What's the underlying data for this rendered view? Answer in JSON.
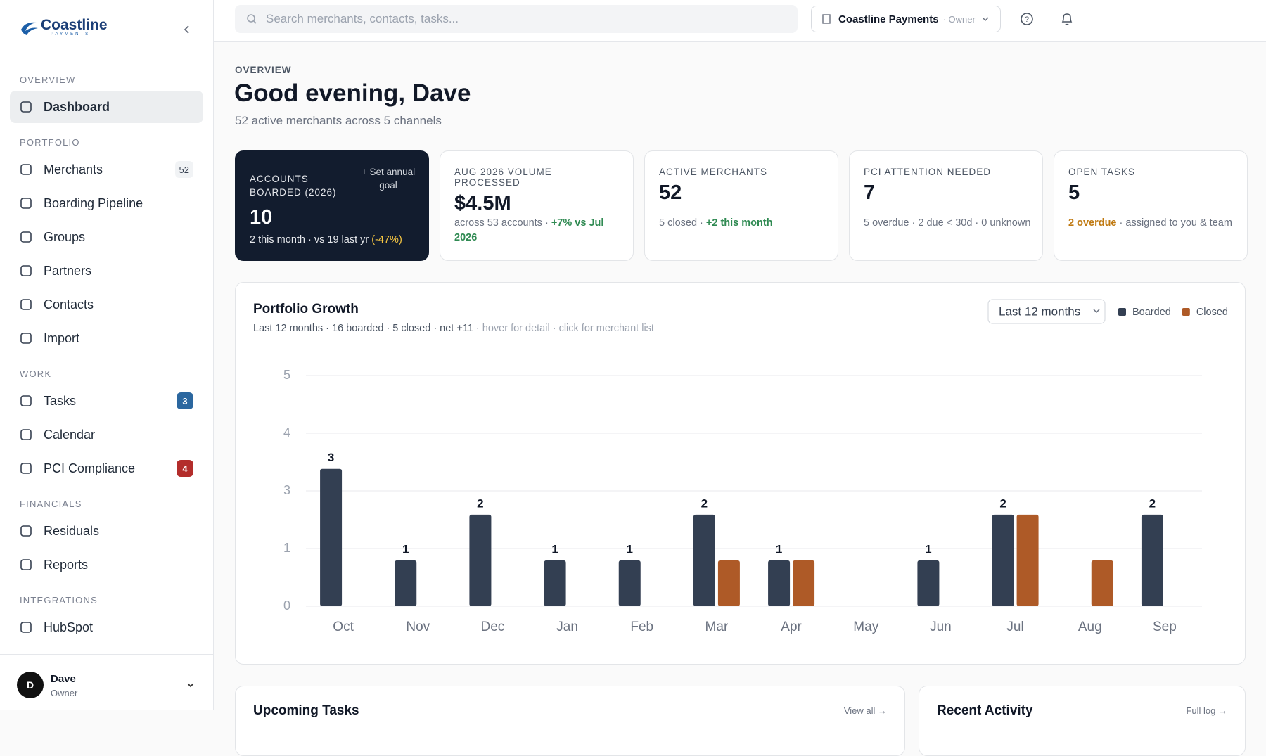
{
  "brand": {
    "name": "Coastline",
    "tagline": "PAYMENTS"
  },
  "sidebar": {
    "sections": [
      {
        "label": "OVERVIEW",
        "items": [
          {
            "label": "Dashboard",
            "active": true
          }
        ]
      },
      {
        "label": "PORTFOLIO",
        "items": [
          {
            "label": "Merchants",
            "badge": "52",
            "badge_color": "#f1f3f5"
          },
          {
            "label": "Boarding Pipeline"
          },
          {
            "label": "Groups"
          },
          {
            "label": "Partners"
          },
          {
            "label": "Contacts"
          },
          {
            "label": "Import"
          }
        ]
      },
      {
        "label": "WORK",
        "items": [
          {
            "label": "Tasks",
            "badge": "3",
            "badge_color": "#2b679f"
          },
          {
            "label": "Calendar"
          },
          {
            "label": "PCI Compliance",
            "badge": "4",
            "badge_color": "#b32d2b"
          }
        ]
      },
      {
        "label": "FINANCIALS",
        "items": [
          {
            "label": "Residuals"
          },
          {
            "label": "Reports"
          }
        ]
      },
      {
        "label": "INTEGRATIONS",
        "items": [
          {
            "label": "HubSpot"
          }
        ]
      }
    ],
    "user": {
      "initial": "D",
      "name": "Dave",
      "role": "Owner"
    }
  },
  "topbar": {
    "search_placeholder": "Search merchants, contacts, tasks...",
    "org": "Coastline Payments",
    "role": "· Owner"
  },
  "header": {
    "eyebrow": "OVERVIEW",
    "title": "Good evening, Dave",
    "subtitle": "52 active merchants across 5 channels"
  },
  "kpis": {
    "featured": {
      "label": "ACCOUNTS BOARDED (2026)",
      "action": "+ Set annual goal",
      "value": "10",
      "sub": "2 this month · vs 19 last yr",
      "delta": "(-47%)"
    },
    "cards": [
      {
        "label": "AUG 2026 VOLUME PROCESSED",
        "value": "$4.5M",
        "sub": "across 53 accounts · ",
        "accent": "+7% vs Jul 2026",
        "accent_color": "#2f8a52",
        "accent_first": false
      },
      {
        "label": "ACTIVE MERCHANTS",
        "value": "52",
        "sub": "5 closed · ",
        "accent": "+2 this month",
        "accent_color": "#2f8a52",
        "accent_first": false
      },
      {
        "label": "PCI ATTENTION NEEDED",
        "value": "7",
        "sub": "5 overdue · 2 due < 30d · 0 unknown"
      },
      {
        "label": "OPEN TASKS",
        "value": "5",
        "accent": "2 overdue",
        "accent_color": "#c07a12",
        "sub": " · assigned to you & team",
        "accent_first": true
      }
    ]
  },
  "chart_data": {
    "type": "bar",
    "title": "Portfolio Growth",
    "subtitle": "Last 12 months · 16 boarded · 5 closed · net +11",
    "hint": " · hover for detail · click for merchant list",
    "range_label": "Last 12 months",
    "categories": [
      "Oct",
      "Nov",
      "Dec",
      "Jan",
      "Feb",
      "Mar",
      "Apr",
      "May",
      "Jun",
      "Jul",
      "Aug",
      "Sep"
    ],
    "series": [
      {
        "name": "Boarded",
        "color": "#333f52",
        "values": [
          3,
          1,
          2,
          1,
          1,
          2,
          1,
          0,
          1,
          2,
          0,
          2
        ]
      },
      {
        "name": "Closed",
        "color": "#ae5a27",
        "values": [
          0,
          0,
          0,
          0,
          0,
          1,
          1,
          0,
          0,
          2,
          1,
          0
        ]
      }
    ],
    "ylim": [
      0,
      5.04
    ],
    "yticks": [
      0,
      {
        "value": 1.26,
        "label": "1"
      },
      {
        "value": 2.52,
        "label": "3"
      },
      {
        "value": 3.78,
        "label": "4"
      },
      {
        "value": 5.04,
        "label": "5"
      }
    ],
    "grid": true,
    "legend": "top-right"
  },
  "panels": [
    {
      "title": "Upcoming Tasks",
      "link": "View all →"
    },
    {
      "title": "Recent Activity",
      "link": "Full log →"
    }
  ]
}
